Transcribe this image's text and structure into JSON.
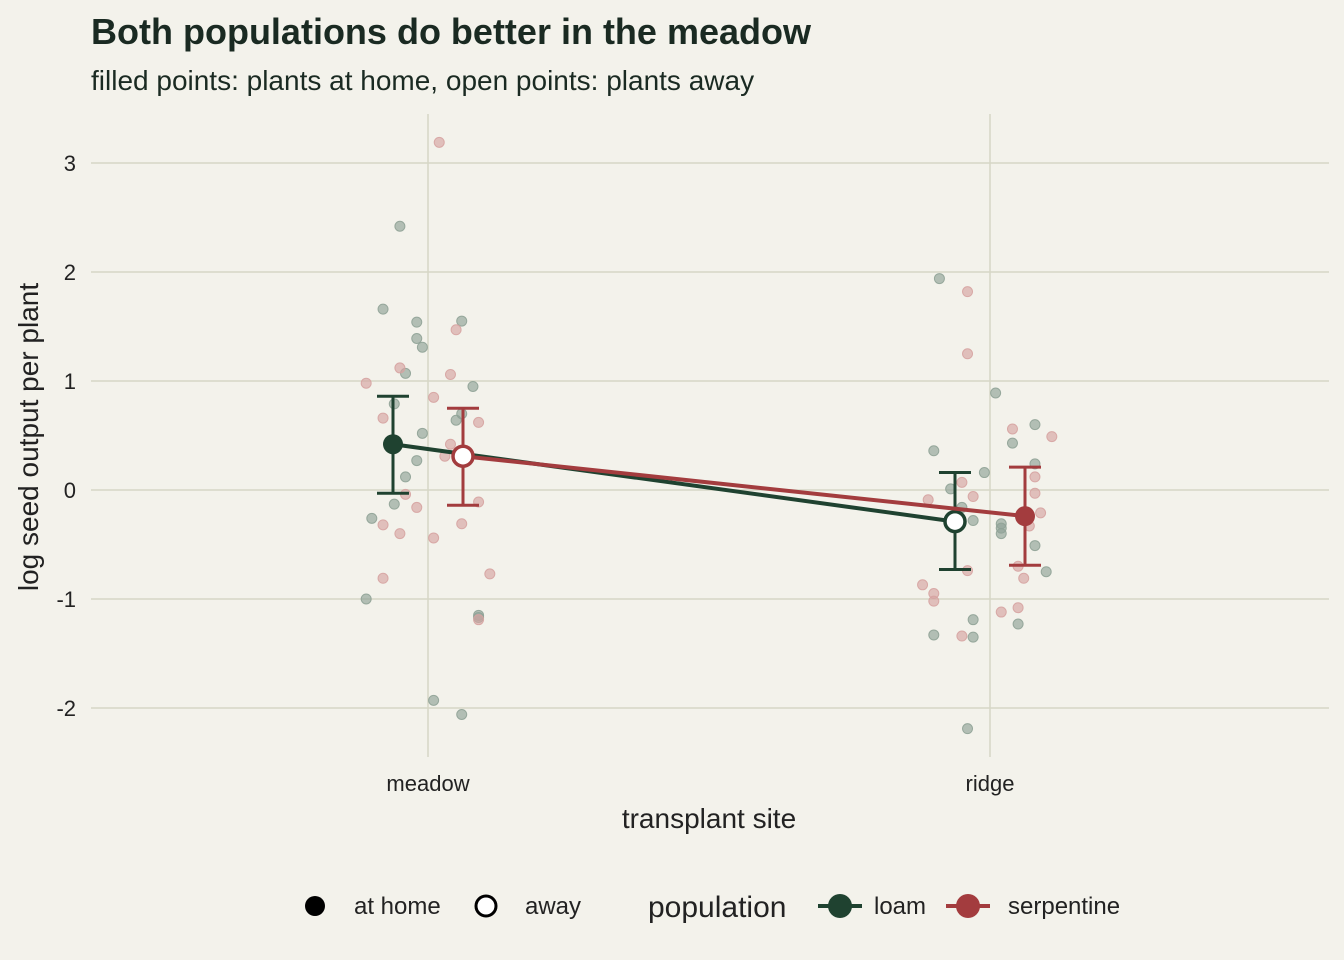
{
  "chart_data": {
    "type": "scatter",
    "title": "Both populations do better in the meadow",
    "subtitle": "filled points: plants at home, open points: plants away",
    "xlabel": "transplant site",
    "ylabel": "log seed output per plant",
    "categories": [
      "meadow",
      "ridge"
    ],
    "ylim": [
      -2.45,
      3.45
    ],
    "yticks": [
      -2,
      -1,
      0,
      1,
      2,
      3
    ],
    "grid": true,
    "legend": {
      "placement": "bottom",
      "shape_items": [
        {
          "label": "at home",
          "filled": true
        },
        {
          "label": "away",
          "filled": false
        }
      ],
      "color_title": "population",
      "color_items": [
        {
          "label": "loam",
          "color": "#1f4230"
        },
        {
          "label": "serpentine",
          "color": "#a33c3e"
        }
      ]
    },
    "series": [
      {
        "name": "loam",
        "color": "#1f4230",
        "raw_color": "#8fa296",
        "summary": [
          {
            "site": "meadow",
            "mean": 0.42,
            "lower": -0.03,
            "upper": 0.86,
            "home": true
          },
          {
            "site": "ridge",
            "mean": -0.29,
            "lower": -0.73,
            "upper": 0.16,
            "home": false
          }
        ],
        "raw": [
          {
            "site": "meadow",
            "offset": -0.05,
            "y": 2.42
          },
          {
            "site": "meadow",
            "offset": -0.08,
            "y": 1.66
          },
          {
            "site": "meadow",
            "offset": -0.02,
            "y": 1.54
          },
          {
            "site": "meadow",
            "offset": -0.02,
            "y": 1.39
          },
          {
            "site": "meadow",
            "offset": -0.01,
            "y": 1.31
          },
          {
            "site": "meadow",
            "offset": -0.04,
            "y": 1.07
          },
          {
            "site": "meadow",
            "offset": -0.06,
            "y": 0.79
          },
          {
            "site": "meadow",
            "offset": -0.01,
            "y": 0.52
          },
          {
            "site": "meadow",
            "offset": -0.02,
            "y": 0.27
          },
          {
            "site": "meadow",
            "offset": -0.04,
            "y": 0.12
          },
          {
            "site": "meadow",
            "offset": -0.06,
            "y": -0.13
          },
          {
            "site": "meadow",
            "offset": -0.1,
            "y": -0.26
          },
          {
            "site": "meadow",
            "offset": -0.11,
            "y": -1.0
          },
          {
            "site": "meadow",
            "offset": 0.06,
            "y": 1.55
          },
          {
            "site": "meadow",
            "offset": 0.08,
            "y": 0.95
          },
          {
            "site": "meadow",
            "offset": 0.06,
            "y": 0.7
          },
          {
            "site": "meadow",
            "offset": 0.05,
            "y": 0.64
          },
          {
            "site": "meadow",
            "offset": 0.09,
            "y": -1.15
          },
          {
            "site": "meadow",
            "offset": 0.09,
            "y": -1.17
          },
          {
            "site": "meadow",
            "offset": 0.01,
            "y": -1.93
          },
          {
            "site": "meadow",
            "offset": 0.06,
            "y": -2.06
          },
          {
            "site": "ridge",
            "offset": -0.09,
            "y": 1.94
          },
          {
            "site": "ridge",
            "offset": -0.1,
            "y": 0.36
          },
          {
            "site": "ridge",
            "offset": -0.07,
            "y": 0.01
          },
          {
            "site": "ridge",
            "offset": -0.05,
            "y": -0.16
          },
          {
            "site": "ridge",
            "offset": -0.03,
            "y": -0.28
          },
          {
            "site": "ridge",
            "offset": -0.1,
            "y": -1.33
          },
          {
            "site": "ridge",
            "offset": -0.03,
            "y": -1.19
          },
          {
            "site": "ridge",
            "offset": -0.03,
            "y": -1.35
          },
          {
            "site": "ridge",
            "offset": -0.04,
            "y": -2.19
          },
          {
            "site": "ridge",
            "offset": 0.01,
            "y": 0.89
          },
          {
            "site": "ridge",
            "offset": 0.08,
            "y": 0.6
          },
          {
            "site": "ridge",
            "offset": 0.04,
            "y": 0.43
          },
          {
            "site": "ridge",
            "offset": 0.08,
            "y": 0.24
          },
          {
            "site": "ridge",
            "offset": -0.01,
            "y": 0.16
          },
          {
            "site": "ridge",
            "offset": 0.02,
            "y": -0.31
          },
          {
            "site": "ridge",
            "offset": 0.02,
            "y": -0.35
          },
          {
            "site": "ridge",
            "offset": 0.02,
            "y": -0.4
          },
          {
            "site": "ridge",
            "offset": 0.08,
            "y": -0.51
          },
          {
            "site": "ridge",
            "offset": 0.1,
            "y": -0.75
          },
          {
            "site": "ridge",
            "offset": 0.05,
            "y": -1.23
          }
        ]
      },
      {
        "name": "serpentine",
        "color": "#a33c3e",
        "raw_color": "#d6a3a1",
        "summary": [
          {
            "site": "meadow",
            "mean": 0.31,
            "lower": -0.14,
            "upper": 0.75,
            "home": false
          },
          {
            "site": "ridge",
            "mean": -0.24,
            "lower": -0.69,
            "upper": 0.21,
            "home": true
          }
        ],
        "raw": [
          {
            "site": "meadow",
            "offset": 0.02,
            "y": 3.19
          },
          {
            "site": "meadow",
            "offset": 0.05,
            "y": 1.47
          },
          {
            "site": "meadow",
            "offset": -0.05,
            "y": 1.12
          },
          {
            "site": "meadow",
            "offset": 0.04,
            "y": 1.06
          },
          {
            "site": "meadow",
            "offset": -0.11,
            "y": 0.98
          },
          {
            "site": "meadow",
            "offset": 0.01,
            "y": 0.85
          },
          {
            "site": "meadow",
            "offset": -0.08,
            "y": 0.66
          },
          {
            "site": "meadow",
            "offset": 0.09,
            "y": 0.62
          },
          {
            "site": "meadow",
            "offset": 0.04,
            "y": 0.42
          },
          {
            "site": "meadow",
            "offset": 0.03,
            "y": 0.31
          },
          {
            "site": "meadow",
            "offset": -0.04,
            "y": -0.04
          },
          {
            "site": "meadow",
            "offset": 0.09,
            "y": -0.11
          },
          {
            "site": "meadow",
            "offset": -0.02,
            "y": -0.16
          },
          {
            "site": "meadow",
            "offset": 0.06,
            "y": -0.31
          },
          {
            "site": "meadow",
            "offset": -0.08,
            "y": -0.32
          },
          {
            "site": "meadow",
            "offset": -0.05,
            "y": -0.4
          },
          {
            "site": "meadow",
            "offset": 0.01,
            "y": -0.44
          },
          {
            "site": "meadow",
            "offset": 0.11,
            "y": -0.77
          },
          {
            "site": "meadow",
            "offset": -0.08,
            "y": -0.81
          },
          {
            "site": "meadow",
            "offset": 0.09,
            "y": -1.19
          },
          {
            "site": "ridge",
            "offset": -0.04,
            "y": 1.82
          },
          {
            "site": "ridge",
            "offset": -0.04,
            "y": 1.25
          },
          {
            "site": "ridge",
            "offset": 0.04,
            "y": 0.56
          },
          {
            "site": "ridge",
            "offset": 0.11,
            "y": 0.49
          },
          {
            "site": "ridge",
            "offset": 0.08,
            "y": 0.12
          },
          {
            "site": "ridge",
            "offset": -0.05,
            "y": 0.07
          },
          {
            "site": "ridge",
            "offset": 0.08,
            "y": -0.03
          },
          {
            "site": "ridge",
            "offset": -0.03,
            "y": -0.06
          },
          {
            "site": "ridge",
            "offset": -0.11,
            "y": -0.09
          },
          {
            "site": "ridge",
            "offset": 0.09,
            "y": -0.21
          },
          {
            "site": "ridge",
            "offset": 0.07,
            "y": -0.33
          },
          {
            "site": "ridge",
            "offset": 0.05,
            "y": -0.7
          },
          {
            "site": "ridge",
            "offset": -0.04,
            "y": -0.74
          },
          {
            "site": "ridge",
            "offset": 0.06,
            "y": -0.81
          },
          {
            "site": "ridge",
            "offset": -0.12,
            "y": -0.87
          },
          {
            "site": "ridge",
            "offset": -0.1,
            "y": -0.95
          },
          {
            "site": "ridge",
            "offset": -0.1,
            "y": -1.02
          },
          {
            "site": "ridge",
            "offset": 0.05,
            "y": -1.08
          },
          {
            "site": "ridge",
            "offset": 0.02,
            "y": -1.12
          },
          {
            "site": "ridge",
            "offset": -0.05,
            "y": -1.34
          }
        ]
      }
    ]
  },
  "colors": {
    "background": "#f3f2eb",
    "grid": "#d6d6c6",
    "text": "#1a2a22"
  }
}
